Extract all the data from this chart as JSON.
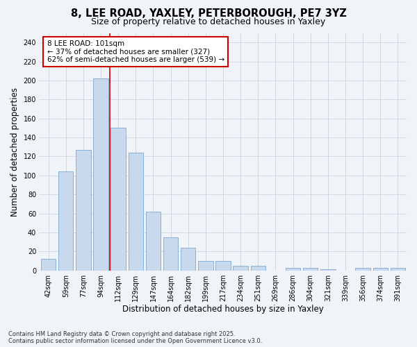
{
  "title1": "8, LEE ROAD, YAXLEY, PETERBOROUGH, PE7 3YZ",
  "title2": "Size of property relative to detached houses in Yaxley",
  "xlabel": "Distribution of detached houses by size in Yaxley",
  "ylabel": "Number of detached properties",
  "categories": [
    "42sqm",
    "59sqm",
    "77sqm",
    "94sqm",
    "112sqm",
    "129sqm",
    "147sqm",
    "164sqm",
    "182sqm",
    "199sqm",
    "217sqm",
    "234sqm",
    "251sqm",
    "269sqm",
    "286sqm",
    "304sqm",
    "321sqm",
    "339sqm",
    "356sqm",
    "374sqm",
    "391sqm"
  ],
  "values": [
    12,
    104,
    127,
    202,
    150,
    124,
    62,
    35,
    24,
    10,
    10,
    5,
    5,
    0,
    3,
    3,
    1,
    0,
    3,
    3,
    3
  ],
  "bar_color": "#c8d9ed",
  "bar_edge_color": "#8ab0d4",
  "red_line_x": 3.5,
  "annotation_line1": "8 LEE ROAD: 101sqm",
  "annotation_line2": "← 37% of detached houses are smaller (327)",
  "annotation_line3": "62% of semi-detached houses are larger (539) →",
  "annotation_box_color": "#ffffff",
  "annotation_border_color": "#cc0000",
  "ylim": [
    0,
    250
  ],
  "yticks": [
    0,
    20,
    40,
    60,
    80,
    100,
    120,
    140,
    160,
    180,
    200,
    220,
    240
  ],
  "bg_color": "#f0f4f8",
  "plot_bg_color": "#f0f4f8",
  "grid_color": "#c8d4e0",
  "footer": "Contains HM Land Registry data © Crown copyright and database right 2025.\nContains public sector information licensed under the Open Government Licence v3.0.",
  "title_fontsize": 10.5,
  "subtitle_fontsize": 9,
  "tick_fontsize": 7,
  "label_fontsize": 8.5,
  "annot_fontsize": 7.5
}
